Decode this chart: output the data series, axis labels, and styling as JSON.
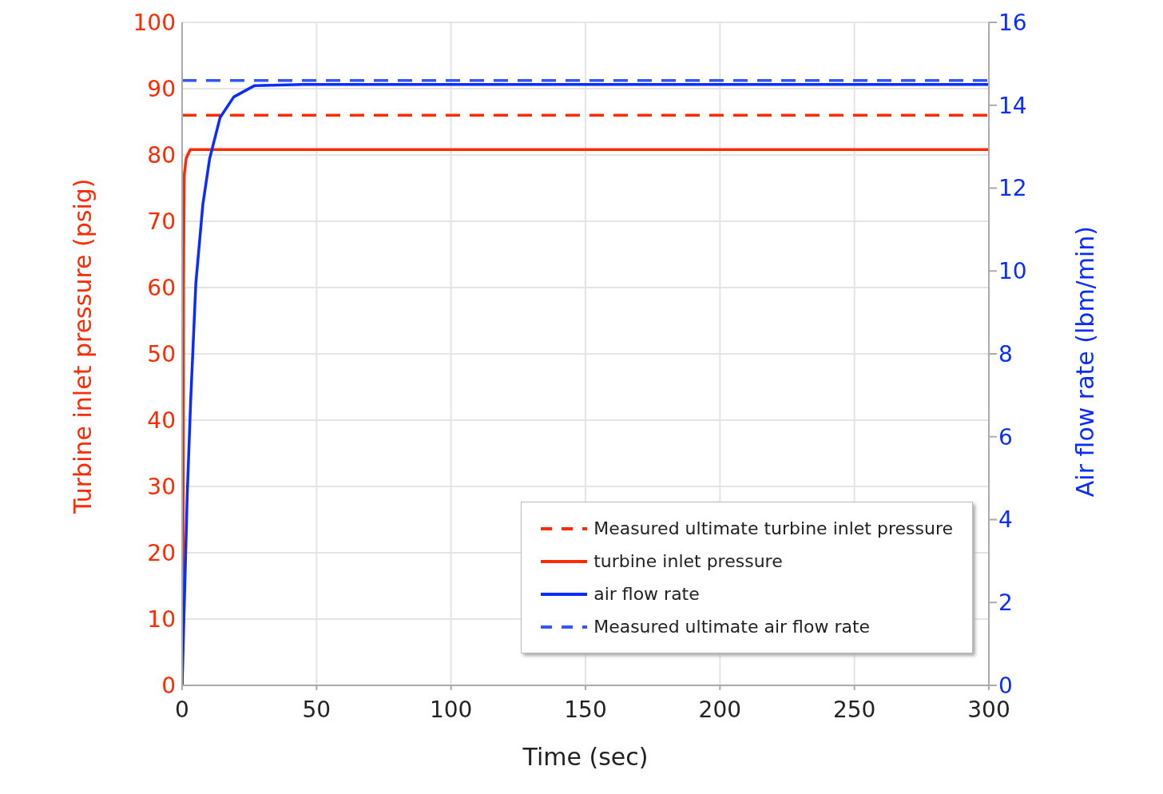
{
  "chart_data": {
    "type": "line",
    "xlabel": "Time (sec)",
    "ylabel": "Turbine inlet pressure (psig)",
    "y2label": "Air flow rate (lbm/min)",
    "xlim": [
      0,
      300
    ],
    "xticks": [
      0,
      50,
      100,
      150,
      200,
      250,
      300
    ],
    "ylim": [
      0,
      100
    ],
    "yticks": [
      0,
      10,
      20,
      30,
      40,
      50,
      60,
      70,
      80,
      90,
      100
    ],
    "y2lim": [
      0,
      16
    ],
    "y2ticks": [
      0,
      2,
      4,
      6,
      8,
      10,
      12,
      14,
      16
    ],
    "grid": true,
    "legend": "bottom right",
    "marker": "none",
    "series": [
      {
        "name": "Measured ultimate turbine inlet pressure",
        "color": "#ff2a00",
        "line_style": "dashed",
        "x": [
          0,
          300
        ],
        "values": [
          86,
          86
        ]
      },
      {
        "name": "turbine inlet pressure",
        "color": "#ff2a00",
        "line_style": "solid",
        "x": [
          0,
          0.3,
          0.5,
          0.8,
          1.5,
          3,
          300
        ],
        "values": [
          0,
          10,
          60,
          77,
          79.5,
          80.8,
          80.8
        ]
      },
      {
        "name": "air flow rate",
        "color": "#0a2cff",
        "line_style": "solid",
        "axis": "y2",
        "x": [
          0,
          1.9,
          3.2,
          5.1,
          7.7,
          10.2,
          14.1,
          19.2,
          26.8,
          45,
          300
        ],
        "values": [
          0,
          4.6,
          6.9,
          9.7,
          11.6,
          12.7,
          13.7,
          14.2,
          14.47,
          14.5,
          14.5
        ]
      },
      {
        "name": "Measured ultimate air flow rate",
        "color": "#3355ff",
        "line_style": "dashed",
        "axis": "y2",
        "x": [
          0,
          300
        ],
        "values": [
          14.6,
          14.6
        ]
      }
    ]
  }
}
